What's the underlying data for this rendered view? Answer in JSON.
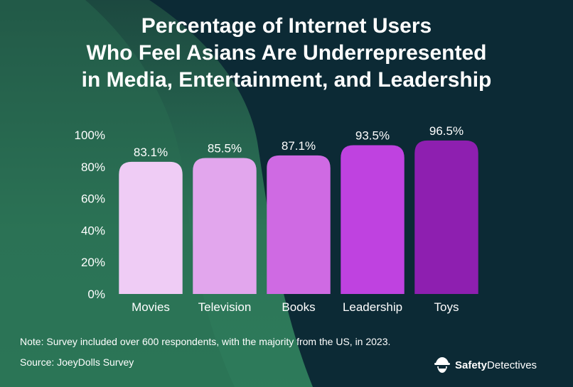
{
  "colors": {
    "background_dark": "#0c2a35",
    "background_green": "#2e7a5a",
    "text": "#ffffff",
    "bar_colors": [
      "#efccf5",
      "#e2a6ed",
      "#cf6ae3",
      "#bf42e0",
      "#8e1fb0"
    ]
  },
  "chart_data": {
    "type": "bar",
    "title_lines": [
      "Percentage of Internet Users",
      "Who Feel Asians Are Underrepresented",
      "in Media, Entertainment, and Leadership"
    ],
    "categories": [
      "Movies",
      "Television",
      "Books",
      "Leadership",
      "Toys"
    ],
    "values": [
      83.1,
      85.5,
      87.1,
      93.5,
      96.5
    ],
    "value_labels": [
      "83.1%",
      "85.5%",
      "87.1%",
      "93.5%",
      "96.5%"
    ],
    "yticks": [
      0,
      20,
      40,
      60,
      80,
      100
    ],
    "ytick_labels": [
      "0%",
      "20%",
      "40%",
      "60%",
      "80%",
      "100%"
    ],
    "ylim": [
      0,
      100
    ],
    "xlabel": "",
    "ylabel": "",
    "grid": false
  },
  "footer": {
    "note": "Note: Survey included over 600 respondents, with the majority from the US, in 2023.",
    "source": "Source: JoeyDolls Survey"
  },
  "brand": {
    "icon": "detective-icon",
    "name_bold": "Safety",
    "name_regular": "Detectives"
  }
}
